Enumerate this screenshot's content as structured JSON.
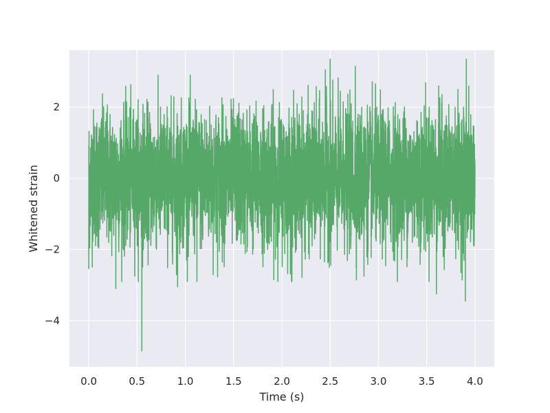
{
  "chart_data": {
    "type": "line",
    "title": "",
    "xlabel": "Time (s)",
    "ylabel": "Whitened strain",
    "xlim": [
      -0.2,
      4.2
    ],
    "ylim": [
      -5.3,
      3.6
    ],
    "xticks": [
      0.0,
      0.5,
      1.0,
      1.5,
      2.0,
      2.5,
      3.0,
      3.5,
      4.0
    ],
    "xtick_labels": [
      "0.0",
      "0.5",
      "1.0",
      "1.5",
      "2.0",
      "2.5",
      "3.0",
      "3.5",
      "4.0"
    ],
    "yticks": [
      -4,
      -2,
      0,
      2
    ],
    "ytick_labels": [
      "−4",
      "−2",
      "0",
      "2"
    ],
    "grid": true,
    "style": {
      "background": "#eaeaf2",
      "grid_color": "#ffffff",
      "line_color": "#55a868",
      "text_color": "#262626"
    },
    "series": [
      {
        "name": "",
        "description": "dense whitened noise time series sampled over 0 to 4 s",
        "x_range": [
          0.0,
          4.0
        ],
        "approx_std": 0.95,
        "notable_points": [
          {
            "x": 0.55,
            "y": -4.85
          },
          {
            "x": 0.28,
            "y": 3.0
          },
          {
            "x": 2.5,
            "y": 3.35
          },
          {
            "x": 2.45,
            "y": 3.05
          },
          {
            "x": 2.76,
            "y": 3.15
          },
          {
            "x": 3.91,
            "y": 3.35
          },
          {
            "x": 3.9,
            "y": -3.45
          },
          {
            "x": 3.6,
            "y": -3.25
          },
          {
            "x": 0.28,
            "y": -3.1
          },
          {
            "x": 0.92,
            "y": -3.05
          },
          {
            "x": 1.12,
            "y": -2.9
          },
          {
            "x": 2.1,
            "y": -2.9
          },
          {
            "x": 2.85,
            "y": -2.75
          },
          {
            "x": 0.0,
            "y": -2.55
          }
        ]
      }
    ]
  }
}
